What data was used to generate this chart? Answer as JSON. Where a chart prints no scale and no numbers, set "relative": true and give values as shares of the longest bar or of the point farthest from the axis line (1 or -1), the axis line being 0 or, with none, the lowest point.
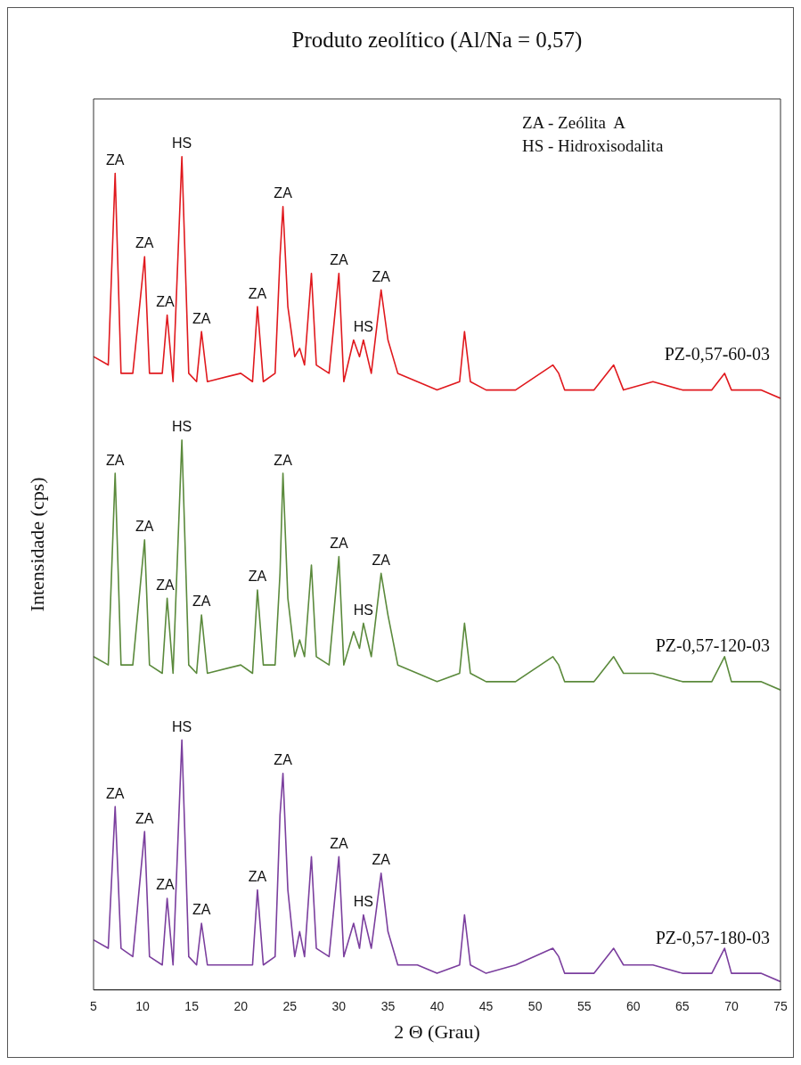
{
  "chart_data": {
    "type": "line",
    "title": "Produto zeolítico (Al/Na = 0,57)",
    "xlabel": "2 Θ (Grau)",
    "ylabel": "Intensidade (cps)",
    "relative": true,
    "grid": false,
    "legend": false,
    "marker": "none",
    "line_style": "solid",
    "xlim": [
      5,
      75
    ],
    "xticks": [
      5,
      10,
      15,
      20,
      25,
      30,
      35,
      40,
      45,
      50,
      55,
      60,
      65,
      70,
      75
    ],
    "x": [
      5,
      6.5,
      7.2,
      7.8,
      9,
      10.2,
      10.7,
      12,
      12.5,
      13.1,
      14,
      14.7,
      15.5,
      16,
      16.6,
      20,
      21.2,
      21.7,
      22.3,
      23.5,
      24.0,
      24.3,
      24.8,
      25.5,
      26,
      26.5,
      27.2,
      27.7,
      29,
      30,
      30.5,
      31.5,
      32.1,
      32.5,
      33.3,
      34.3,
      35,
      36,
      38,
      40,
      42.3,
      42.8,
      43.4,
      45,
      48,
      51.8,
      52.4,
      53,
      56,
      58,
      59,
      62,
      65,
      68,
      69.3,
      70,
      73,
      75
    ],
    "series": [
      {
        "name": "PZ-0,57-60-03",
        "color": "#e0191e",
        "values": [
          0.76,
          0.75,
          0.98,
          0.74,
          0.74,
          0.88,
          0.74,
          0.74,
          0.81,
          0.73,
          1.0,
          0.74,
          0.73,
          0.79,
          0.73,
          0.74,
          0.73,
          0.82,
          0.73,
          0.74,
          0.88,
          0.94,
          0.82,
          0.76,
          0.77,
          0.75,
          0.86,
          0.75,
          0.74,
          0.86,
          0.73,
          0.78,
          0.76,
          0.78,
          0.74,
          0.84,
          0.78,
          0.74,
          0.73,
          0.72,
          0.73,
          0.79,
          0.73,
          0.72,
          0.72,
          0.75,
          0.74,
          0.72,
          0.72,
          0.75,
          0.72,
          0.73,
          0.72,
          0.72,
          0.74,
          0.72,
          0.72,
          0.71
        ]
      },
      {
        "name": "PZ-0,57-120-03",
        "color": "#5b8a3c",
        "values": [
          0.4,
          0.39,
          0.62,
          0.39,
          0.39,
          0.54,
          0.39,
          0.38,
          0.47,
          0.38,
          0.66,
          0.39,
          0.38,
          0.45,
          0.38,
          0.39,
          0.38,
          0.48,
          0.39,
          0.39,
          0.5,
          0.62,
          0.47,
          0.4,
          0.42,
          0.4,
          0.51,
          0.4,
          0.39,
          0.52,
          0.39,
          0.43,
          0.41,
          0.44,
          0.4,
          0.5,
          0.45,
          0.39,
          0.38,
          0.37,
          0.38,
          0.44,
          0.38,
          0.37,
          0.37,
          0.4,
          0.39,
          0.37,
          0.37,
          0.4,
          0.38,
          0.38,
          0.37,
          0.37,
          0.4,
          0.37,
          0.37,
          0.36
        ]
      },
      {
        "name": "PZ-0,57-180-03",
        "color": "#7b3f9e",
        "values": [
          0.06,
          0.05,
          0.22,
          0.05,
          0.04,
          0.19,
          0.04,
          0.03,
          0.11,
          0.03,
          0.3,
          0.04,
          0.03,
          0.08,
          0.03,
          0.03,
          0.03,
          0.12,
          0.03,
          0.04,
          0.21,
          0.26,
          0.12,
          0.04,
          0.07,
          0.04,
          0.16,
          0.05,
          0.04,
          0.16,
          0.04,
          0.08,
          0.05,
          0.09,
          0.05,
          0.14,
          0.07,
          0.03,
          0.03,
          0.02,
          0.03,
          0.09,
          0.03,
          0.02,
          0.03,
          0.05,
          0.04,
          0.02,
          0.02,
          0.05,
          0.03,
          0.03,
          0.02,
          0.02,
          0.05,
          0.02,
          0.02,
          0.01
        ]
      }
    ],
    "annotations": [
      "ZA - Zeólita  A",
      "HS - Hidroxisodalita",
      {
        "text": "ZA",
        "x": 7.2,
        "y": 0.98
      },
      {
        "text": "ZA",
        "x": 10.2,
        "y": 0.88
      },
      {
        "text": "ZA",
        "x": 12.5,
        "y": 0.81
      },
      {
        "text": "HS",
        "x": 14,
        "y": 1.0
      },
      {
        "text": "ZA",
        "x": 16,
        "y": 0.79
      },
      {
        "text": "ZA",
        "x": 21.7,
        "y": 0.82
      },
      {
        "text": "ZA",
        "x": 24.3,
        "y": 0.94
      },
      {
        "text": "ZA",
        "x": 30,
        "y": 0.86
      },
      {
        "text": "HS",
        "x": 32.5,
        "y": 0.78
      },
      {
        "text": "ZA",
        "x": 34.3,
        "y": 0.84
      },
      {
        "text": "ZA",
        "x": 7.2,
        "y": 0.62
      },
      {
        "text": "ZA",
        "x": 10.2,
        "y": 0.54
      },
      {
        "text": "ZA",
        "x": 12.5,
        "y": 0.47
      },
      {
        "text": "HS",
        "x": 14,
        "y": 0.66
      },
      {
        "text": "ZA",
        "x": 16,
        "y": 0.45
      },
      {
        "text": "ZA",
        "x": 21.7,
        "y": 0.48
      },
      {
        "text": "ZA",
        "x": 24.3,
        "y": 0.62
      },
      {
        "text": "ZA",
        "x": 30,
        "y": 0.52
      },
      {
        "text": "HS",
        "x": 32.5,
        "y": 0.44
      },
      {
        "text": "ZA",
        "x": 34.3,
        "y": 0.5
      },
      {
        "text": "ZA",
        "x": 7.2,
        "y": 0.22
      },
      {
        "text": "ZA",
        "x": 10.2,
        "y": 0.19
      },
      {
        "text": "ZA",
        "x": 12.5,
        "y": 0.11
      },
      {
        "text": "HS",
        "x": 14,
        "y": 0.3
      },
      {
        "text": "ZA",
        "x": 16,
        "y": 0.08
      },
      {
        "text": "ZA",
        "x": 21.7,
        "y": 0.12
      },
      {
        "text": "ZA",
        "x": 24.3,
        "y": 0.26
      },
      {
        "text": "ZA",
        "x": 30,
        "y": 0.16
      },
      {
        "text": "HS",
        "x": 32.5,
        "y": 0.09
      },
      {
        "text": "ZA",
        "x": 34.3,
        "y": 0.14
      }
    ]
  }
}
